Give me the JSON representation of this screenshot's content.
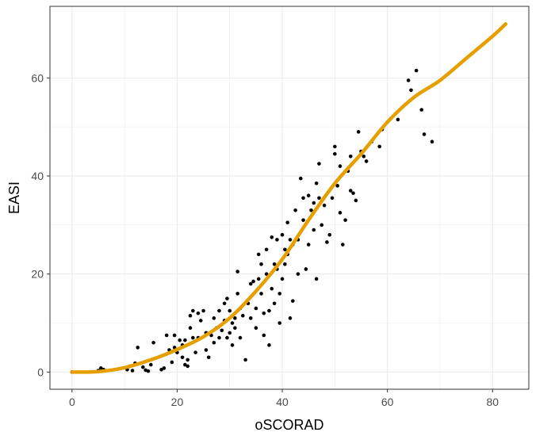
{
  "chart_data": {
    "type": "scatter",
    "title": "",
    "xlabel": "oSCORAD",
    "ylabel": "EASI",
    "xlim": [
      -4.2,
      86.9
    ],
    "ylim": [
      -3.5,
      74.6
    ],
    "xticks": [
      0,
      20,
      40,
      60,
      80
    ],
    "yticks": [
      0,
      20,
      40,
      60
    ],
    "grid": true,
    "legend": "none",
    "colors": {
      "points": "#000000",
      "trend": "#E69F00",
      "grid": "#ebebeb",
      "panel_border": "#333333"
    },
    "series": [
      {
        "kind": "scatter",
        "points": [
          [
            0,
            0
          ],
          [
            5,
            0.3
          ],
          [
            5.5,
            0.8
          ],
          [
            6,
            0.5
          ],
          [
            10.5,
            0.5
          ],
          [
            11,
            1.2
          ],
          [
            11.5,
            0.3
          ],
          [
            12,
            1.8
          ],
          [
            12.5,
            5
          ],
          [
            13.5,
            1
          ],
          [
            14,
            0.4
          ],
          [
            14.5,
            0.2
          ],
          [
            15,
            1.5
          ],
          [
            15.5,
            6
          ],
          [
            17,
            0.5
          ],
          [
            17.5,
            0.8
          ],
          [
            18,
            7.5
          ],
          [
            18.5,
            4.5
          ],
          [
            19,
            2
          ],
          [
            19.5,
            7.5
          ],
          [
            19.5,
            5
          ],
          [
            20,
            4
          ],
          [
            20.5,
            6.5
          ],
          [
            21,
            5.5
          ],
          [
            21,
            3
          ],
          [
            21.5,
            1.5
          ],
          [
            21.5,
            6.5
          ],
          [
            22,
            2.5
          ],
          [
            22,
            1.2
          ],
          [
            22.5,
            9
          ],
          [
            22.5,
            11.5
          ],
          [
            23,
            12.5
          ],
          [
            23,
            7
          ],
          [
            23.5,
            4
          ],
          [
            24,
            12
          ],
          [
            24,
            7
          ],
          [
            24.5,
            10.5
          ],
          [
            25,
            12.5
          ],
          [
            25.5,
            8
          ],
          [
            25.5,
            4.5
          ],
          [
            26,
            3
          ],
          [
            26.5,
            7.5
          ],
          [
            27,
            11
          ],
          [
            27,
            6
          ],
          [
            27.5,
            9
          ],
          [
            28,
            12.5
          ],
          [
            28,
            7
          ],
          [
            28.5,
            8.5
          ],
          [
            29,
            14
          ],
          [
            29,
            10.5
          ],
          [
            29.5,
            15
          ],
          [
            29.5,
            7
          ],
          [
            30,
            12.5
          ],
          [
            30,
            8
          ],
          [
            30.5,
            10
          ],
          [
            30.5,
            5.5
          ],
          [
            31,
            11
          ],
          [
            31,
            9
          ],
          [
            31.5,
            16
          ],
          [
            31.5,
            20.5
          ],
          [
            32,
            13
          ],
          [
            32,
            7
          ],
          [
            32.5,
            11.5
          ],
          [
            33,
            2.5
          ],
          [
            33.5,
            14
          ],
          [
            34,
            18
          ],
          [
            34,
            11
          ],
          [
            34.5,
            18.5
          ],
          [
            35,
            13
          ],
          [
            35,
            9
          ],
          [
            35.5,
            19
          ],
          [
            35.5,
            24
          ],
          [
            36,
            22
          ],
          [
            36,
            16
          ],
          [
            36.5,
            12
          ],
          [
            36.5,
            7.5
          ],
          [
            37,
            25
          ],
          [
            37,
            20
          ],
          [
            37.5,
            12.5
          ],
          [
            37.5,
            5.5
          ],
          [
            38,
            27.5
          ],
          [
            38,
            17
          ],
          [
            38.5,
            22
          ],
          [
            38.5,
            14
          ],
          [
            39,
            27
          ],
          [
            39,
            21
          ],
          [
            39.5,
            10
          ],
          [
            39.5,
            16
          ],
          [
            40,
            28
          ],
          [
            40,
            19
          ],
          [
            40.5,
            25
          ],
          [
            40.5,
            22
          ],
          [
            41,
            30.5
          ],
          [
            41,
            24
          ],
          [
            41.5,
            27
          ],
          [
            41.5,
            11
          ],
          [
            42,
            26
          ],
          [
            42,
            14.5
          ],
          [
            42.5,
            33
          ],
          [
            43,
            27
          ],
          [
            43,
            20
          ],
          [
            43.5,
            39.5
          ],
          [
            44,
            35.5
          ],
          [
            44,
            31
          ],
          [
            44.5,
            21
          ],
          [
            45,
            36
          ],
          [
            45,
            26
          ],
          [
            45.5,
            33
          ],
          [
            46,
            34.5
          ],
          [
            46,
            29
          ],
          [
            46.5,
            38.5
          ],
          [
            46.5,
            19
          ],
          [
            47,
            35.5
          ],
          [
            47,
            42.5
          ],
          [
            47.5,
            30
          ],
          [
            48,
            34
          ],
          [
            48.5,
            26.5
          ],
          [
            49,
            28
          ],
          [
            49.5,
            35.5
          ],
          [
            50,
            46
          ],
          [
            50,
            44.5
          ],
          [
            50.5,
            38
          ],
          [
            51,
            42
          ],
          [
            51,
            32.5
          ],
          [
            51.5,
            26
          ],
          [
            52,
            31
          ],
          [
            52.5,
            41
          ],
          [
            53,
            44
          ],
          [
            53,
            37
          ],
          [
            53.5,
            36.5
          ],
          [
            54,
            35
          ],
          [
            54.5,
            49
          ],
          [
            55,
            45
          ],
          [
            55.5,
            44
          ],
          [
            56,
            43
          ],
          [
            57,
            47
          ],
          [
            58.5,
            46
          ],
          [
            59,
            49.5
          ],
          [
            60,
            51
          ],
          [
            62,
            51.5
          ],
          [
            64,
            59.5
          ],
          [
            64.5,
            57.5
          ],
          [
            65.5,
            61.5
          ],
          [
            66.5,
            53.5
          ],
          [
            67,
            48.5
          ],
          [
            68.5,
            47
          ]
        ]
      },
      {
        "kind": "trend",
        "points": [
          [
            0,
            0
          ],
          [
            5,
            0.1
          ],
          [
            10,
            0.9
          ],
          [
            15,
            2.5
          ],
          [
            20,
            4.6
          ],
          [
            25,
            7.2
          ],
          [
            30,
            11
          ],
          [
            35,
            16.5
          ],
          [
            40,
            23
          ],
          [
            45,
            31
          ],
          [
            50,
            38.5
          ],
          [
            55,
            44.5
          ],
          [
            60,
            51
          ],
          [
            65,
            56
          ],
          [
            70,
            59.5
          ],
          [
            75,
            64
          ],
          [
            80,
            68.5
          ],
          [
            82.5,
            71
          ]
        ]
      }
    ]
  }
}
